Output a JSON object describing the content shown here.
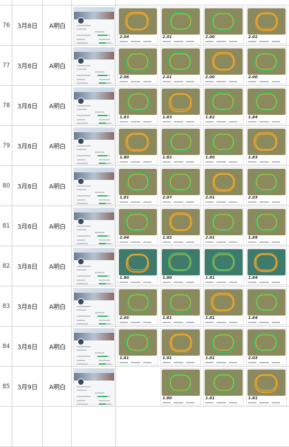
{
  "sheet": {
    "rows": [
      {
        "num": "76",
        "date": "3月8日",
        "name": "A明白",
        "distances": [
          "2.04",
          "2.01",
          "2.00",
          "2.01"
        ]
      },
      {
        "num": "77",
        "date": "3月8日",
        "name": "A明白",
        "distances": [
          "2.06",
          "2.01",
          "2.00",
          "2.00"
        ]
      },
      {
        "num": "78",
        "date": "3月8日",
        "name": "A明白",
        "distances": [
          "1.83",
          "1.83",
          "1.82",
          "1.84"
        ]
      },
      {
        "num": "79",
        "date": "3月8日",
        "name": "A明白",
        "distances": [
          "1.80",
          "1.82",
          "1.80",
          "1.83"
        ]
      },
      {
        "num": "80",
        "date": "3月8日",
        "name": "A明白",
        "distances": [
          "1.81",
          "2.07",
          "2.01",
          "2.03"
        ]
      },
      {
        "num": "81",
        "date": "3月8日",
        "name": "A明白",
        "distances": [
          "2.04",
          "1.92",
          "2.01",
          "1.89"
        ]
      },
      {
        "num": "82",
        "date": "3月8日",
        "name": "A明白",
        "distances": [
          "1.80",
          "1.80",
          "1.81",
          "1.84"
        ]
      },
      {
        "num": "83",
        "date": "3月8日",
        "name": "A明白",
        "distances": [
          "2.05",
          "1.81",
          "1.81",
          "1.84"
        ]
      },
      {
        "num": "84",
        "date": "3月8日",
        "name": "A明白",
        "distances": [
          "1.81",
          "1.91",
          "1.81",
          "2.03"
        ]
      },
      {
        "num": "85",
        "date": "3月9日",
        "name": "A明白",
        "distances": [
          "",
          "1.80",
          "1.81",
          "1.81"
        ]
      }
    ]
  },
  "colors": {
    "grid_line": "#d4d4d4",
    "track_green": "#3fb567",
    "track_orange": "#e89a2a",
    "map_bg": "#8b8a5e",
    "map_bg_teal": "#3f7b6d"
  },
  "icons": {
    "row_screenshot": "app-summary-screenshot-thumbnail",
    "route_map": "running-route-map-thumbnail"
  }
}
